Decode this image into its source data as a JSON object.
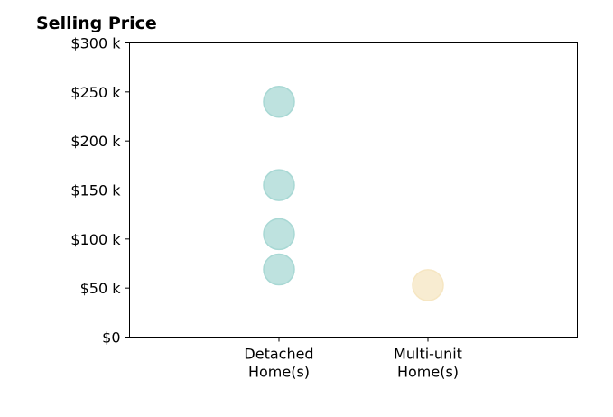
{
  "chart_data": {
    "type": "scatter",
    "title": "Selling Price",
    "categories": [
      [
        "Detached",
        "Home(s)"
      ],
      [
        "Multi-unit",
        "Home(s)"
      ]
    ],
    "ylim": [
      0,
      300
    ],
    "y_ticks": [
      0,
      50,
      100,
      150,
      200,
      250,
      300
    ],
    "y_tick_labels": [
      "$0",
      "$50 k",
      "$100 k",
      "$150 k",
      "$200 k",
      "$250 k",
      "$300 k"
    ],
    "xlabel": "",
    "ylabel": "",
    "grid": false,
    "series": [
      {
        "category_index": 0,
        "values": [
          240,
          155,
          105,
          69
        ],
        "color": "#a8d8d4"
      },
      {
        "category_index": 1,
        "values": [
          53
        ],
        "color": "#f6e6c2"
      }
    ]
  }
}
